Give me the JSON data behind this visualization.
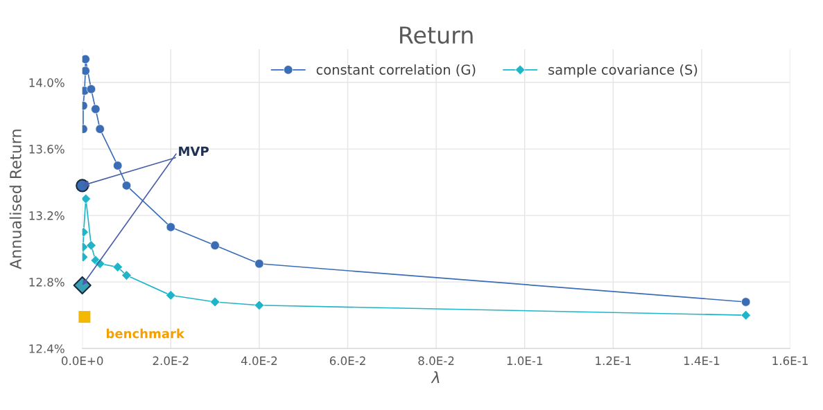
{
  "chart_data": {
    "type": "line",
    "title": "Return",
    "xlabel": "λ",
    "ylabel": "Annualised Return",
    "xlim": [
      0,
      0.16
    ],
    "ylim": [
      12.4,
      14.2
    ],
    "xticks": [
      {
        "value": 0,
        "label": "0.0E+0"
      },
      {
        "value": 0.02,
        "label": "2.0E-2"
      },
      {
        "value": 0.04,
        "label": "4.0E-2"
      },
      {
        "value": 0.06,
        "label": "6.0E-2"
      },
      {
        "value": 0.08,
        "label": "8.0E-2"
      },
      {
        "value": 0.1,
        "label": "1.0E-1"
      },
      {
        "value": 0.12,
        "label": "1.2E-1"
      },
      {
        "value": 0.14,
        "label": "1.4E-1"
      },
      {
        "value": 0.16,
        "label": "1.6E-1"
      }
    ],
    "yticks": [
      {
        "value": 12.4,
        "label": "12.4%"
      },
      {
        "value": 12.8,
        "label": "12.8%"
      },
      {
        "value": 13.2,
        "label": "13.2%"
      },
      {
        "value": 13.6,
        "label": "13.6%"
      },
      {
        "value": 14.0,
        "label": "14.0%"
      }
    ],
    "grid": true,
    "legend": "top",
    "series": [
      {
        "name": "constant correlation (G)",
        "color": "#3a6db5",
        "marker": "circle",
        "x": [
          0.0002,
          0.0002,
          0.0005,
          0.0007,
          0.0007,
          0.002,
          0.003,
          0.004,
          0.008,
          0.01,
          0.02,
          0.03,
          0.04,
          0.15
        ],
        "values": [
          13.72,
          13.86,
          13.95,
          14.07,
          14.14,
          13.96,
          13.84,
          13.72,
          13.5,
          13.38,
          13.13,
          13.02,
          12.91,
          12.68
        ]
      },
      {
        "name": "sample covariance (S)",
        "color": "#1fb5c8",
        "marker": "diamond",
        "x": [
          0.0002,
          0.0002,
          0.0003,
          0.0008,
          0.002,
          0.003,
          0.004,
          0.008,
          0.01,
          0.02,
          0.03,
          0.04,
          0.15
        ],
        "values": [
          12.95,
          13.01,
          13.1,
          13.3,
          13.02,
          12.93,
          12.91,
          12.89,
          12.84,
          12.72,
          12.68,
          12.66,
          12.6
        ]
      },
      {
        "type": "scatter",
        "color": "#3a6db5",
        "marker": "circle",
        "x": [
          0
        ],
        "values": [
          13.38
        ]
      },
      {
        "type": "scatter",
        "color": "#3aa0b8",
        "marker": "diamond",
        "x": [
          0
        ],
        "values": [
          12.78
        ]
      },
      {
        "type": "scatter",
        "color": "#f5b800",
        "marker": "square",
        "x": [
          0.0005
        ],
        "values": [
          12.59
        ]
      }
    ],
    "annotations": [
      {
        "text": "MVP",
        "x": 0,
        "y": 13.38
      },
      {
        "text": "benchmark",
        "x": 0.0005,
        "y": 12.59
      }
    ]
  }
}
